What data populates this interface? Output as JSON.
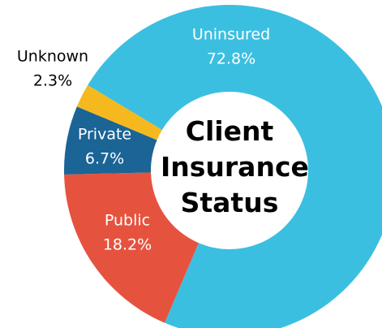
{
  "chart_data": {
    "type": "donut",
    "title": "Client Insurance Status",
    "categories": [
      "Uninsured",
      "Public",
      "Private",
      "Unknown"
    ],
    "values": [
      72.8,
      18.2,
      6.7,
      2.3
    ],
    "value_labels": [
      "72.8%",
      "18.2%",
      "6.7%",
      "2.3%"
    ],
    "colors": [
      "#3bbfe1",
      "#e5533f",
      "#1b6496",
      "#f6b81f"
    ]
  }
}
